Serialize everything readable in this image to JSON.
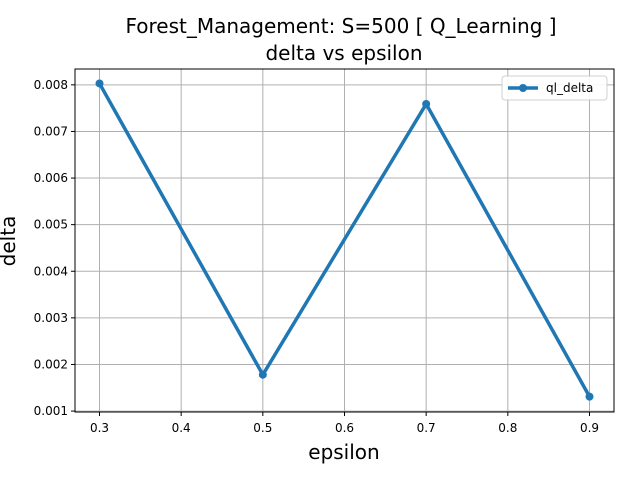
{
  "chart_data": {
    "type": "line",
    "title": [
      "Forest_Management: S=500 [ Q_Learning ]",
      "delta vs epsilon"
    ],
    "xlabel": "epsilon",
    "ylabel": "delta",
    "x": [
      0.3,
      0.5,
      0.7,
      0.9
    ],
    "xlim": [
      0.27,
      0.93
    ],
    "ylim": [
      0.00098,
      0.00834
    ],
    "xticks": [
      0.3,
      0.4,
      0.5,
      0.6,
      0.7,
      0.8,
      0.9
    ],
    "xtick_labels": [
      "0.3",
      "0.4",
      "0.5",
      "0.6",
      "0.7",
      "0.8",
      "0.9"
    ],
    "yticks": [
      0.001,
      0.002,
      0.003,
      0.004,
      0.005,
      0.006,
      0.007,
      0.008
    ],
    "ytick_labels": [
      "0.001",
      "0.002",
      "0.003",
      "0.004",
      "0.005",
      "0.006",
      "0.007",
      "0.008"
    ],
    "grid": true,
    "legend_position": "top-right",
    "series": [
      {
        "name": "ql_delta",
        "values": [
          0.00803,
          0.00178,
          0.00759,
          0.00131
        ],
        "color": "#1f77b4"
      }
    ]
  }
}
